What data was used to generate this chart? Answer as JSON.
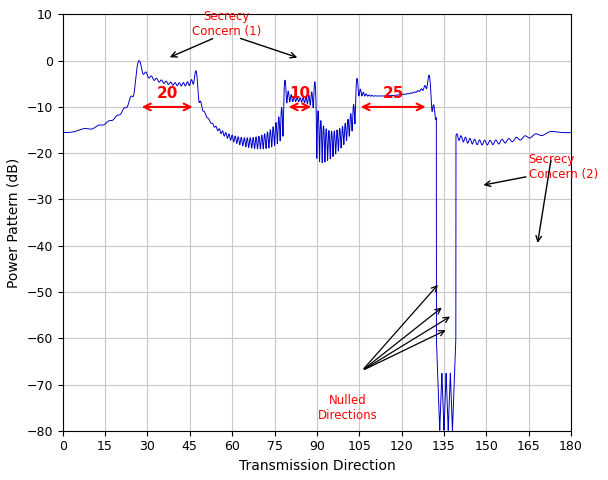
{
  "xlabel": "Transmission Direction",
  "ylabel": "Power Pattern (dB)",
  "xlim": [
    0,
    180
  ],
  "ylim": [
    -80,
    10
  ],
  "xticks": [
    0,
    15,
    30,
    45,
    60,
    75,
    90,
    105,
    120,
    135,
    150,
    165,
    180
  ],
  "yticks": [
    -80,
    -70,
    -60,
    -50,
    -40,
    -30,
    -20,
    -10,
    0,
    10
  ],
  "line_color": "#0000CC",
  "beam1_lo": 27,
  "beam1_hi": 47,
  "beam2_lo": 79,
  "beam2_hi": 89,
  "beam3_lo": 104.5,
  "beam3_hi": 129.5,
  "null_dirs": [
    133.5,
    135.0,
    136.5,
    138.0
  ],
  "background_color": "#ffffff",
  "grid_color": "#c8c8c8"
}
